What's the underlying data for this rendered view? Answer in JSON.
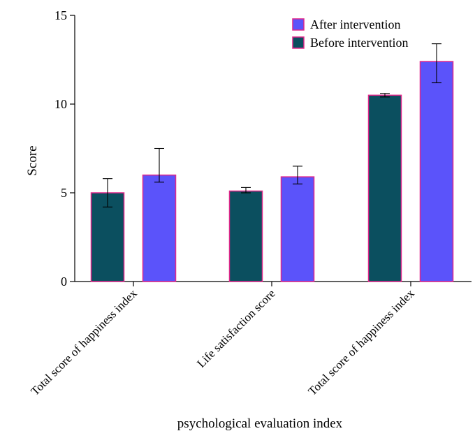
{
  "chart_data": {
    "type": "bar",
    "title": "",
    "xlabel": "psychological evaluation index",
    "ylabel": "Score",
    "ylim": [
      0,
      15
    ],
    "yticks": [
      0,
      5,
      10,
      15
    ],
    "grid": false,
    "legend_position": "top-right",
    "categories": [
      "Total score of happiness index",
      "Life satisfaction score",
      "Total score of happiness index"
    ],
    "series": [
      {
        "name": "Before intervention",
        "color": "#0b4f5f",
        "values": [
          5.0,
          5.1,
          10.5
        ],
        "error_low": [
          4.2,
          5.0,
          10.4
        ],
        "error_high": [
          5.8,
          5.3,
          10.6
        ]
      },
      {
        "name": "After intervention",
        "color": "#5b53fa",
        "values": [
          6.0,
          5.9,
          12.4
        ],
        "error_low": [
          5.6,
          5.5,
          11.2
        ],
        "error_high": [
          7.5,
          6.5,
          13.4
        ]
      }
    ],
    "legend_order": [
      "After intervention",
      "Before intervention"
    ],
    "bar_edge_color": "#e0278a"
  }
}
